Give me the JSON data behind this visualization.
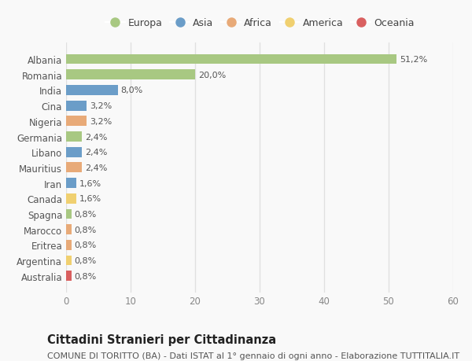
{
  "countries": [
    "Albania",
    "Romania",
    "India",
    "Cina",
    "Nigeria",
    "Germania",
    "Libano",
    "Mauritius",
    "Iran",
    "Canada",
    "Spagna",
    "Marocco",
    "Eritrea",
    "Argentina",
    "Australia"
  ],
  "values": [
    51.2,
    20.0,
    8.0,
    3.2,
    3.2,
    2.4,
    2.4,
    2.4,
    1.6,
    1.6,
    0.8,
    0.8,
    0.8,
    0.8,
    0.8
  ],
  "labels": [
    "51,2%",
    "20,0%",
    "8,0%",
    "3,2%",
    "3,2%",
    "2,4%",
    "2,4%",
    "2,4%",
    "1,6%",
    "1,6%",
    "0,8%",
    "0,8%",
    "0,8%",
    "0,8%",
    "0,8%"
  ],
  "continents": [
    "Europa",
    "Europa",
    "Asia",
    "Asia",
    "Africa",
    "Europa",
    "Asia",
    "Africa",
    "Asia",
    "America",
    "Europa",
    "Africa",
    "Africa",
    "America",
    "Oceania"
  ],
  "continent_colors": {
    "Europa": "#a8c882",
    "Asia": "#6b9dc8",
    "Africa": "#e8aa78",
    "America": "#f0d070",
    "Oceania": "#d96060"
  },
  "legend_order": [
    "Europa",
    "Asia",
    "Africa",
    "America",
    "Oceania"
  ],
  "xlim": [
    0,
    60
  ],
  "xticks": [
    0,
    10,
    20,
    30,
    40,
    50,
    60
  ],
  "title": "Cittadini Stranieri per Cittadinanza",
  "subtitle": "COMUNE DI TORITTO (BA) - Dati ISTAT al 1° gennaio di ogni anno - Elaborazione TUTTITALIA.IT",
  "bg_color": "#f9f9f9",
  "grid_color": "#e0e0e0",
  "bar_height": 0.65,
  "title_fontsize": 10.5,
  "subtitle_fontsize": 8,
  "label_fontsize": 8,
  "tick_fontsize": 8.5,
  "legend_fontsize": 9
}
